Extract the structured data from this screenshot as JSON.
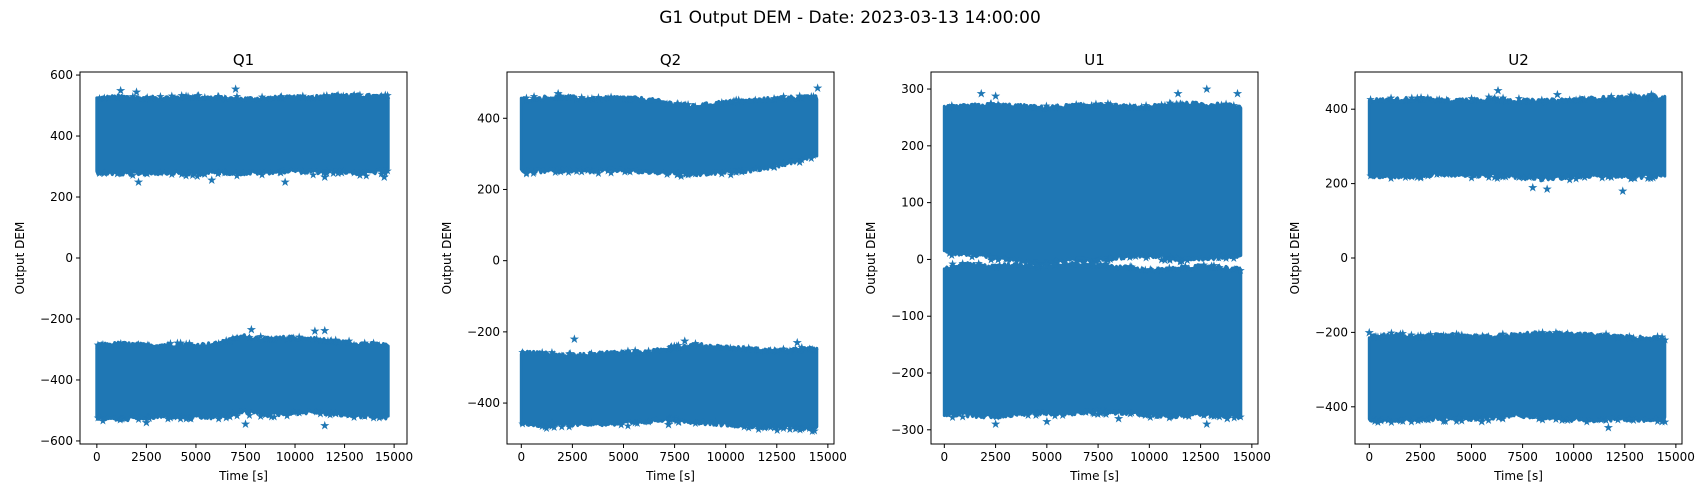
{
  "figure": {
    "suptitle": "G1 Output DEM - Date: 2023-03-13 14:00:00",
    "color": "#1f77b4"
  },
  "chart_data": [
    {
      "type": "scatter",
      "marker": "star",
      "title": "Q1",
      "xlabel": "Time [s]",
      "ylabel": "Output DEM",
      "xlim": [
        -850,
        15650
      ],
      "ylim": [
        -610,
        610
      ],
      "xticks": [
        0,
        2500,
        5000,
        7500,
        10000,
        12500,
        15000
      ],
      "yticks": [
        -600,
        -400,
        -200,
        0,
        200,
        400,
        600
      ],
      "x_range": [
        0,
        14700
      ],
      "bands": [
        {
          "top": [
            520,
            525,
            520,
            522,
            525,
            520,
            518,
            520,
            522,
            525,
            530,
            528,
            525
          ],
          "bottom": [
            285,
            280,
            282,
            285,
            280,
            285,
            282,
            285,
            290,
            285,
            288,
            282,
            290
          ]
        },
        {
          "top": [
            -290,
            -285,
            -290,
            -288,
            -290,
            -285,
            -260,
            -270,
            -265,
            -270,
            -280,
            -285,
            -290
          ],
          "bottom": [
            -520,
            -525,
            -520,
            -515,
            -520,
            -518,
            -500,
            -510,
            -505,
            -500,
            -510,
            -515,
            -520
          ]
        }
      ],
      "outliers": [
        [
          1200,
          550
        ],
        [
          2000,
          545
        ],
        [
          7000,
          555
        ],
        [
          2100,
          250
        ],
        [
          5800,
          255
        ],
        [
          9500,
          250
        ],
        [
          11500,
          265
        ],
        [
          14500,
          265
        ],
        [
          7800,
          -235
        ],
        [
          11000,
          -240
        ],
        [
          11500,
          -238
        ],
        [
          7500,
          -545
        ],
        [
          11500,
          -550
        ],
        [
          2500,
          -540
        ]
      ],
      "grid": false
    },
    {
      "type": "scatter",
      "marker": "star",
      "title": "Q2",
      "xlabel": "Time [s]",
      "ylabel": "Output DEM",
      "xlim": [
        -700,
        15300
      ],
      "ylim": [
        -515,
        530
      ],
      "xticks": [
        0,
        2500,
        5000,
        7500,
        10000,
        12500,
        15000
      ],
      "yticks": [
        -400,
        -200,
        0,
        200,
        400
      ],
      "x_range": [
        0,
        14500
      ],
      "bands": [
        {
          "top": [
            450,
            455,
            455,
            450,
            455,
            450,
            440,
            430,
            440,
            445,
            450,
            455,
            455
          ],
          "bottom": [
            255,
            255,
            258,
            255,
            258,
            252,
            250,
            245,
            250,
            255,
            265,
            280,
            300
          ]
        },
        {
          "top": [
            -260,
            -265,
            -270,
            -265,
            -260,
            -262,
            -250,
            -240,
            -245,
            -250,
            -255,
            -255,
            -250
          ],
          "bottom": [
            -455,
            -460,
            -455,
            -455,
            -455,
            -450,
            -440,
            -450,
            -455,
            -460,
            -465,
            -465,
            -470
          ]
        }
      ],
      "outliers": [
        [
          14500,
          485
        ],
        [
          1800,
          470
        ],
        [
          2600,
          -220
        ],
        [
          8000,
          -225
        ],
        [
          13500,
          -230
        ],
        [
          7200,
          -460
        ],
        [
          9500,
          -455
        ],
        [
          13500,
          -470
        ],
        [
          1500,
          -455
        ]
      ],
      "grid": false
    },
    {
      "type": "scatter",
      "marker": "star",
      "title": "U1",
      "xlabel": "Time [s]",
      "ylabel": "Output DEM",
      "xlim": [
        -650,
        15300
      ],
      "ylim": [
        -325,
        330
      ],
      "xticks": [
        0,
        2500,
        5000,
        7500,
        10000,
        12500,
        15000
      ],
      "yticks": [
        -300,
        -200,
        -100,
        0,
        100,
        200,
        300
      ],
      "x_range": [
        0,
        14500
      ],
      "bands": [
        {
          "top": [
            265,
            268,
            270,
            268,
            265,
            268,
            270,
            268,
            265,
            270,
            272,
            270,
            268
          ],
          "bottom": [
            15,
            10,
            5,
            0,
            -5,
            2,
            0,
            5,
            10,
            5,
            0,
            5,
            10
          ]
        },
        {
          "top": [
            -15,
            -10,
            -15,
            -10,
            -15,
            -10,
            -12,
            -15,
            -20,
            -20,
            -15,
            -15,
            -20
          ],
          "bottom": [
            -270,
            -272,
            -275,
            -270,
            -268,
            -270,
            -265,
            -268,
            -270,
            -275,
            -270,
            -272,
            -275
          ]
        }
      ],
      "outliers": [
        [
          1800,
          292
        ],
        [
          2500,
          288
        ],
        [
          12800,
          300
        ],
        [
          14300,
          292
        ],
        [
          11400,
          292
        ],
        [
          2500,
          -290
        ],
        [
          5000,
          -285
        ],
        [
          12800,
          -290
        ],
        [
          13800,
          -280
        ],
        [
          8500,
          -280
        ]
      ],
      "grid": false
    },
    {
      "type": "scatter",
      "marker": "star",
      "title": "U2",
      "xlabel": "Time [s]",
      "ylabel": "Output DEM",
      "xlim": [
        -700,
        15300
      ],
      "ylim": [
        -500,
        500
      ],
      "xticks": [
        0,
        2500,
        5000,
        7500,
        10000,
        12500,
        15000
      ],
      "yticks": [
        -400,
        -200,
        0,
        200,
        400
      ],
      "x_range": [
        0,
        14500
      ],
      "bands": [
        {
          "top": [
            420,
            422,
            425,
            420,
            422,
            425,
            420,
            418,
            422,
            425,
            428,
            430,
            428
          ],
          "bottom": [
            225,
            222,
            225,
            228,
            225,
            225,
            222,
            215,
            220,
            225,
            225,
            222,
            225
          ]
        },
        {
          "top": [
            -215,
            -210,
            -215,
            -210,
            -212,
            -215,
            -210,
            -205,
            -208,
            -210,
            -215,
            -218,
            -220
          ],
          "bottom": [
            -430,
            -435,
            -430,
            -428,
            -430,
            -425,
            -420,
            -425,
            -430,
            -435,
            -430,
            -432,
            -430
          ]
        }
      ],
      "outliers": [
        [
          6300,
          450
        ],
        [
          9200,
          440
        ],
        [
          13800,
          440
        ],
        [
          8000,
          190
        ],
        [
          8700,
          185
        ],
        [
          12400,
          180
        ],
        [
          0,
          -200
        ],
        [
          5500,
          -440
        ],
        [
          11700,
          -455
        ]
      ],
      "grid": false
    }
  ]
}
